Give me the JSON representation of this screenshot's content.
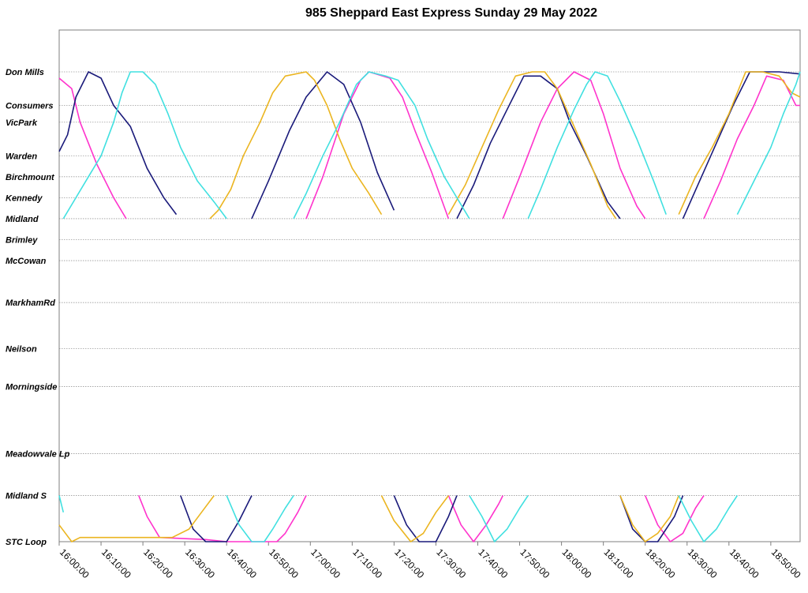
{
  "chart_data": {
    "type": "line",
    "title": "985 Sheppard East Express Sunday 29 May 2022",
    "xlabel": "",
    "ylabel": "",
    "x_range": [
      "16:00:00",
      "18:57:00"
    ],
    "x_ticks": [
      "16:00:00",
      "16:10:00",
      "16:20:00",
      "16:30:00",
      "16:40:00",
      "16:50:00",
      "17:00:00",
      "17:10:00",
      "17:20:00",
      "17:30:00",
      "17:40:00",
      "17:50:00",
      "18:00:00",
      "18:10:00",
      "18:20:00",
      "18:30:00",
      "18:40:00",
      "18:50:00"
    ],
    "stops": [
      {
        "name": "Don Mills",
        "km": 0.0
      },
      {
        "name": "Consumers",
        "km": 0.8
      },
      {
        "name": "VicPark",
        "km": 1.2
      },
      {
        "name": "Warden",
        "km": 2.0
      },
      {
        "name": "Birchmount",
        "km": 2.5
      },
      {
        "name": "Kennedy",
        "km": 3.0
      },
      {
        "name": "Midland",
        "km": 3.5
      },
      {
        "name": "Brimley",
        "km": 4.0
      },
      {
        "name": "McCowan",
        "km": 4.5
      },
      {
        "name": "MarkhamRd",
        "km": 5.5
      },
      {
        "name": "Neilson",
        "km": 6.6
      },
      {
        "name": "Morningside",
        "km": 7.5
      },
      {
        "name": "Meadowvale Lp",
        "km": 9.1
      },
      {
        "name": "Midland S",
        "km": 10.1
      },
      {
        "name": "STC Loop",
        "km": 11.2
      }
    ],
    "grid": true,
    "legend": "none",
    "series": [
      {
        "color": "#ff33cc",
        "segments": [
          [
            [
              "16:00:00",
              0.15
            ],
            [
              "16:03:00",
              0.4
            ],
            [
              "16:05:00",
              1.2
            ],
            [
              "16:09:00",
              2.2
            ],
            [
              "16:13:00",
              3.0
            ],
            [
              "16:16:00",
              3.5
            ]
          ],
          [
            [
              "16:19:00",
              10.1
            ],
            [
              "16:21:00",
              10.6
            ],
            [
              "16:24:00",
              11.1
            ],
            [
              "16:35:00",
              11.15
            ],
            [
              "16:40:00",
              11.2
            ],
            [
              "16:52:00",
              11.2
            ],
            [
              "16:54:00",
              11.0
            ],
            [
              "16:57:00",
              10.5
            ],
            [
              "16:59:00",
              10.1
            ]
          ],
          [
            [
              "16:59:00",
              3.5
            ],
            [
              "17:03:00",
              2.5
            ],
            [
              "17:08:00",
              1.0
            ],
            [
              "17:12:00",
              0.2
            ],
            [
              "17:14:00",
              0.0
            ],
            [
              "17:19:00",
              0.15
            ],
            [
              "17:22:00",
              0.6
            ],
            [
              "17:25:00",
              1.4
            ],
            [
              "17:29:00",
              2.4
            ],
            [
              "17:33:00",
              3.5
            ]
          ],
          [
            [
              "17:33:00",
              10.1
            ],
            [
              "17:36:00",
              10.8
            ],
            [
              "17:39:00",
              11.2
            ],
            [
              "17:42:00",
              10.8
            ],
            [
              "17:45:00",
              10.3
            ],
            [
              "17:46:00",
              10.1
            ]
          ],
          [
            [
              "17:46:00",
              3.5
            ],
            [
              "17:50:00",
              2.5
            ],
            [
              "17:55:00",
              1.2
            ],
            [
              "17:59:00",
              0.4
            ],
            [
              "18:03:00",
              0.0
            ],
            [
              "18:07:00",
              0.2
            ],
            [
              "18:10:00",
              1.0
            ],
            [
              "18:14:00",
              2.3
            ],
            [
              "18:18:00",
              3.2
            ],
            [
              "18:20:00",
              3.5
            ]
          ],
          [
            [
              "18:20:00",
              10.1
            ],
            [
              "18:23:00",
              10.8
            ],
            [
              "18:26:00",
              11.2
            ],
            [
              "18:29:00",
              11.0
            ],
            [
              "18:32:00",
              10.4
            ],
            [
              "18:34:00",
              10.1
            ]
          ],
          [
            [
              "18:34:00",
              3.5
            ],
            [
              "18:38:00",
              2.6
            ],
            [
              "18:42:00",
              1.6
            ],
            [
              "18:46:00",
              0.8
            ],
            [
              "18:49:00",
              0.1
            ],
            [
              "18:53:00",
              0.2
            ],
            [
              "18:56:00",
              0.8
            ],
            [
              "18:57:00",
              0.8
            ]
          ]
        ]
      },
      {
        "color": "#1a1a7a",
        "segments": [
          [
            [
              "16:00:00",
              1.9
            ],
            [
              "16:02:00",
              1.5
            ],
            [
              "16:04:00",
              0.6
            ],
            [
              "16:07:00",
              0.0
            ],
            [
              "16:10:00",
              0.15
            ],
            [
              "16:13:00",
              0.8
            ],
            [
              "16:17:00",
              1.3
            ],
            [
              "16:21:00",
              2.3
            ],
            [
              "16:25:00",
              3.0
            ],
            [
              "16:28:00",
              3.4
            ]
          ],
          [
            [
              "16:29:00",
              10.1
            ],
            [
              "16:32:00",
              10.9
            ],
            [
              "16:35:00",
              11.2
            ],
            [
              "16:37:00",
              11.2
            ],
            [
              "16:40:00",
              11.2
            ],
            [
              "16:43:00",
              10.7
            ],
            [
              "16:46:00",
              10.1
            ]
          ],
          [
            [
              "16:46:00",
              3.5
            ],
            [
              "16:50:00",
              2.6
            ],
            [
              "16:55:00",
              1.4
            ],
            [
              "16:59:00",
              0.6
            ],
            [
              "17:04:00",
              0.0
            ],
            [
              "17:08:00",
              0.3
            ],
            [
              "17:12:00",
              1.2
            ],
            [
              "17:16:00",
              2.4
            ],
            [
              "17:20:00",
              3.3
            ]
          ],
          [
            [
              "17:20:00",
              10.1
            ],
            [
              "17:23:00",
              10.8
            ],
            [
              "17:26:00",
              11.2
            ],
            [
              "17:30:00",
              11.2
            ],
            [
              "17:33:00",
              10.6
            ],
            [
              "17:35:00",
              10.1
            ]
          ],
          [
            [
              "17:35:00",
              3.5
            ],
            [
              "17:39:00",
              2.7
            ],
            [
              "17:43:00",
              1.7
            ],
            [
              "17:47:00",
              0.9
            ],
            [
              "17:51:00",
              0.1
            ],
            [
              "17:55:00",
              0.1
            ],
            [
              "17:59:00",
              0.4
            ],
            [
              "18:02:00",
              1.2
            ],
            [
              "18:06:00",
              2.0
            ],
            [
              "18:11:00",
              3.1
            ],
            [
              "18:14:00",
              3.5
            ]
          ],
          [
            [
              "18:14:00",
              10.1
            ],
            [
              "18:17:00",
              10.9
            ],
            [
              "18:20:00",
              11.2
            ],
            [
              "18:23:00",
              11.2
            ],
            [
              "18:27:00",
              10.6
            ],
            [
              "18:29:00",
              10.1
            ]
          ],
          [
            [
              "18:29:00",
              3.5
            ],
            [
              "18:33:00",
              2.6
            ],
            [
              "18:37:00",
              1.7
            ],
            [
              "18:41:00",
              0.8
            ],
            [
              "18:45:00",
              0.0
            ],
            [
              "18:49:00",
              0.0
            ],
            [
              "18:52:00",
              0.0
            ],
            [
              "18:57:00",
              0.05
            ]
          ]
        ]
      },
      {
        "color": "#ebb520",
        "segments": [
          [
            [
              "16:00:00",
              10.8
            ],
            [
              "16:03:00",
              11.2
            ],
            [
              "16:05:00",
              11.1
            ],
            [
              "16:08:00",
              11.1
            ],
            [
              "16:20:00",
              11.1
            ],
            [
              "16:27:00",
              11.1
            ],
            [
              "16:31:00",
              10.9
            ],
            [
              "16:34:00",
              10.5
            ],
            [
              "16:37:00",
              10.1
            ]
          ],
          [
            [
              "16:36:00",
              3.5
            ],
            [
              "16:38:00",
              3.3
            ],
            [
              "16:41:00",
              2.8
            ],
            [
              "16:44:00",
              2.0
            ],
            [
              "16:48:00",
              1.2
            ],
            [
              "16:51:00",
              0.5
            ],
            [
              "16:54:00",
              0.1
            ],
            [
              "16:59:00",
              0.0
            ],
            [
              "17:01:00",
              0.2
            ],
            [
              "17:04:00",
              0.8
            ],
            [
              "17:07:00",
              1.6
            ],
            [
              "17:10:00",
              2.3
            ],
            [
              "17:14:00",
              2.9
            ],
            [
              "17:17:00",
              3.4
            ]
          ],
          [
            [
              "17:17:00",
              10.1
            ],
            [
              "17:20:00",
              10.7
            ],
            [
              "17:24:00",
              11.2
            ],
            [
              "17:27:00",
              11.0
            ],
            [
              "17:30:00",
              10.5
            ],
            [
              "17:33:00",
              10.1
            ]
          ],
          [
            [
              "17:33:00",
              3.4
            ],
            [
              "17:37:00",
              2.7
            ],
            [
              "17:41:00",
              1.8
            ],
            [
              "17:45:00",
              0.9
            ],
            [
              "17:49:00",
              0.1
            ],
            [
              "17:53:00",
              0.0
            ],
            [
              "17:56:00",
              0.0
            ],
            [
              "17:59:00",
              0.4
            ],
            [
              "18:03:00",
              1.3
            ],
            [
              "18:07:00",
              2.2
            ],
            [
              "18:11:00",
              3.2
            ],
            [
              "18:13:00",
              3.5
            ]
          ],
          [
            [
              "18:14:00",
              10.1
            ],
            [
              "18:17:00",
              10.8
            ],
            [
              "18:20:00",
              11.2
            ],
            [
              "18:23:00",
              11.0
            ],
            [
              "18:26:00",
              10.6
            ],
            [
              "18:28:00",
              10.1
            ]
          ],
          [
            [
              "18:28:00",
              3.4
            ],
            [
              "18:32:00",
              2.5
            ],
            [
              "18:36:00",
              1.8
            ],
            [
              "18:40:00",
              1.0
            ],
            [
              "18:44:00",
              0.0
            ],
            [
              "18:48:00",
              0.0
            ],
            [
              "18:52:00",
              0.1
            ],
            [
              "18:55:00",
              0.5
            ],
            [
              "18:57:00",
              0.6
            ]
          ]
        ]
      },
      {
        "color": "#40e0e0",
        "segments": [
          [
            [
              "16:00:00",
              10.1
            ],
            [
              "16:01:00",
              10.5
            ]
          ],
          [
            [
              "16:01:00",
              3.5
            ],
            [
              "16:04:00",
              3.0
            ],
            [
              "16:07:00",
              2.5
            ],
            [
              "16:10:00",
              2.0
            ],
            [
              "16:13:00",
              1.2
            ],
            [
              "16:15:00",
              0.5
            ],
            [
              "16:17:00",
              0.0
            ],
            [
              "16:20:00",
              0.0
            ],
            [
              "16:23:00",
              0.3
            ],
            [
              "16:26:00",
              1.0
            ],
            [
              "16:29:00",
              1.8
            ],
            [
              "16:33:00",
              2.6
            ],
            [
              "16:37:00",
              3.1
            ],
            [
              "16:40:00",
              3.5
            ]
          ],
          [
            [
              "16:40:00",
              10.1
            ],
            [
              "16:43:00",
              10.8
            ],
            [
              "16:46:00",
              11.2
            ],
            [
              "16:49:00",
              11.2
            ],
            [
              "16:51:00",
              10.9
            ],
            [
              "16:54:00",
              10.4
            ],
            [
              "16:56:00",
              10.1
            ]
          ],
          [
            [
              "16:56:00",
              3.5
            ],
            [
              "16:59:00",
              2.9
            ],
            [
              "17:03:00",
              2.0
            ],
            [
              "17:07:00",
              1.2
            ],
            [
              "17:11:00",
              0.3
            ],
            [
              "17:14:00",
              0.0
            ],
            [
              "17:18:00",
              0.1
            ],
            [
              "17:21:00",
              0.2
            ],
            [
              "17:25:00",
              0.8
            ],
            [
              "17:28:00",
              1.6
            ],
            [
              "17:32:00",
              2.5
            ],
            [
              "17:35:00",
              3.0
            ],
            [
              "17:38:00",
              3.5
            ]
          ],
          [
            [
              "17:38:00",
              10.1
            ],
            [
              "17:41:00",
              10.6
            ],
            [
              "17:44:00",
              11.2
            ],
            [
              "17:47:00",
              10.9
            ],
            [
              "17:50:00",
              10.4
            ],
            [
              "17:52:00",
              10.1
            ]
          ],
          [
            [
              "17:52:00",
              3.5
            ],
            [
              "17:55:00",
              2.8
            ],
            [
              "17:59:00",
              1.8
            ],
            [
              "18:03:00",
              0.9
            ],
            [
              "18:06:00",
              0.3
            ],
            [
              "18:08:00",
              0.0
            ],
            [
              "18:11:00",
              0.1
            ],
            [
              "18:14:00",
              0.7
            ],
            [
              "18:18:00",
              1.6
            ],
            [
              "18:22:00",
              2.6
            ],
            [
              "18:25:00",
              3.4
            ]
          ],
          [
            [
              "18:28:00",
              10.1
            ],
            [
              "18:31:00",
              10.7
            ],
            [
              "18:34:00",
              11.2
            ],
            [
              "18:37:00",
              10.9
            ],
            [
              "18:40:00",
              10.4
            ],
            [
              "18:42:00",
              10.1
            ]
          ],
          [
            [
              "18:42:00",
              3.4
            ],
            [
              "18:46:00",
              2.6
            ],
            [
              "18:50:00",
              1.8
            ],
            [
              "18:53:00",
              1.0
            ],
            [
              "18:56:00",
              0.3
            ],
            [
              "18:57:00",
              0.0
            ]
          ]
        ]
      }
    ]
  }
}
